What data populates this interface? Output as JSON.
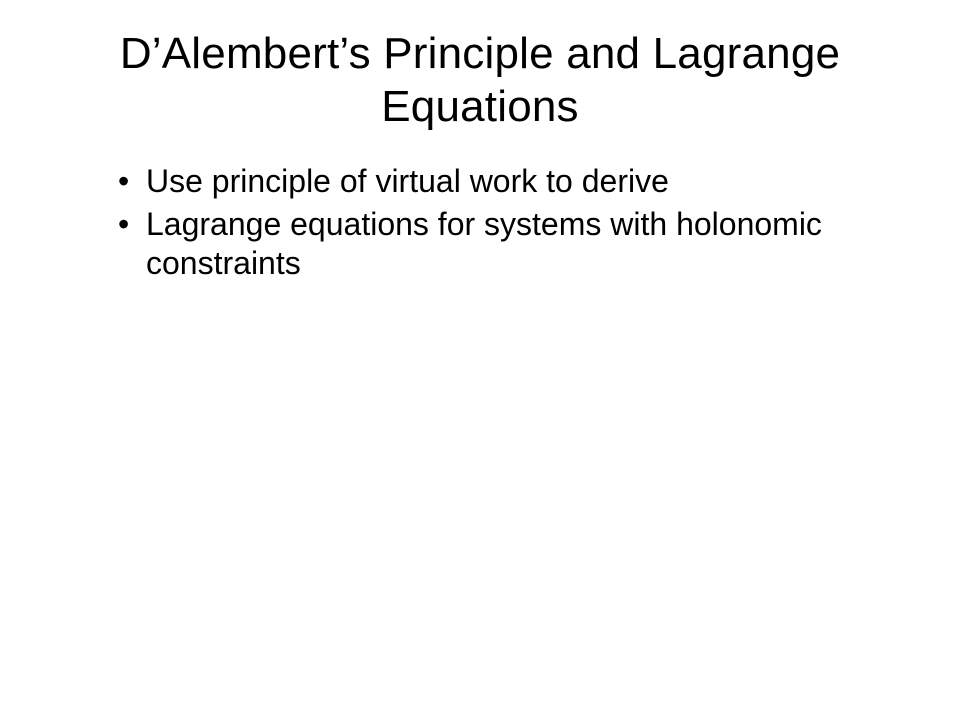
{
  "slide": {
    "title": "D’Alembert’s Principle and Lagrange Equations",
    "title_fontsize": 44,
    "title_align": "center",
    "bullets": [
      "Use principle of virtual work to derive",
      "Lagrange equations for systems with holonomic constraints"
    ],
    "bullet_fontsize": 32,
    "text_color": "#000000",
    "background_color": "#ffffff",
    "font_family": "Arial"
  }
}
